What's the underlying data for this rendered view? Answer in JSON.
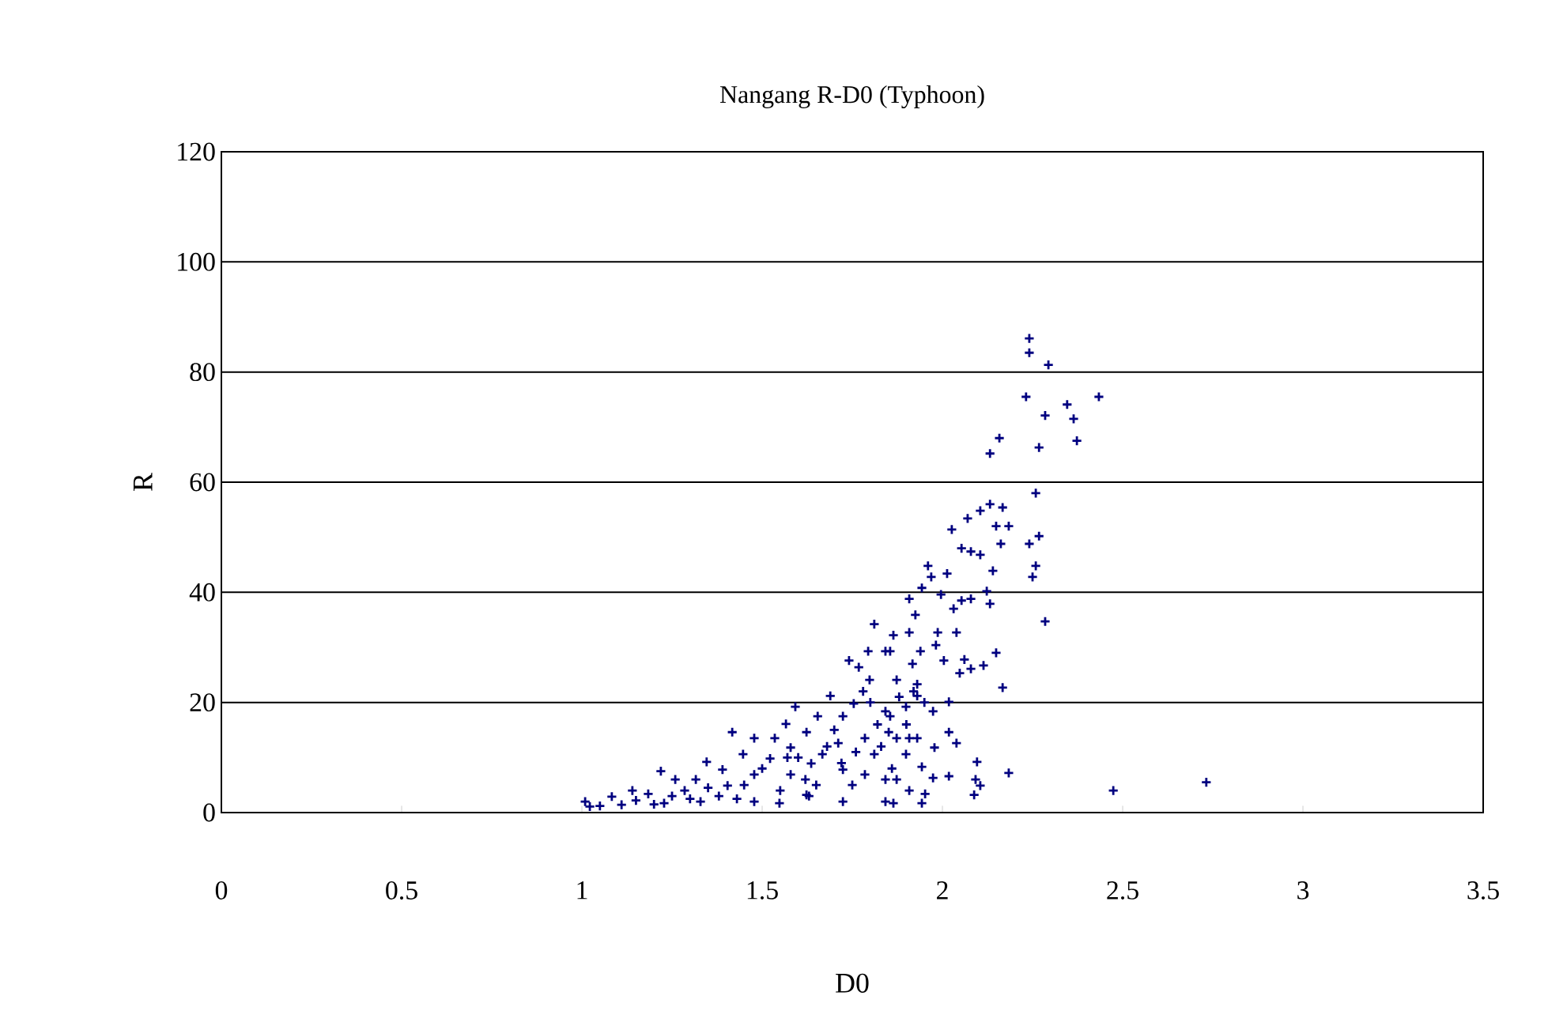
{
  "chart_data": {
    "type": "scatter",
    "title": "Nangang R-D0 (Typhoon)",
    "xlabel": "D0",
    "ylabel": "R",
    "xlim": [
      0,
      3.5
    ],
    "ylim": [
      0,
      120
    ],
    "xticks": [
      0,
      0.5,
      1,
      1.5,
      2,
      2.5,
      3,
      3.5
    ],
    "yticks": [
      0,
      20,
      40,
      60,
      80,
      100,
      120
    ],
    "grid": "y",
    "marker": "cross",
    "series": [
      {
        "color": "#000080",
        "x": [
          2.241,
          2.241,
          2.294,
          2.232,
          2.434,
          2.346,
          2.364,
          2.285,
          2.373,
          2.268,
          2.158,
          2.132,
          2.259,
          2.132,
          2.167,
          2.105,
          2.07,
          2.026,
          2.149,
          2.184,
          2.162,
          2.053,
          2.079,
          2.105,
          2.241,
          2.268,
          2.14,
          2.259,
          2.25,
          1.96,
          1.969,
          2.013,
          1.943,
          1.908,
          1.996,
          2.123,
          2.132,
          2.079,
          2.053,
          2.031,
          1.925,
          2.285,
          1.864,
          1.908,
          1.987,
          2.039,
          1.982,
          1.939,
          1.855,
          2.149,
          2.061,
          2.114,
          2.079,
          2.048,
          2.004,
          1.917,
          1.873,
          1.93,
          2.167,
          2.018,
          1.974,
          1.899,
          1.93,
          1.855,
          1.908,
          1.93,
          2.018,
          2.039,
          1.978,
          1.851,
          2.096,
          2.184,
          2.018,
          2.092,
          2.105,
          2.088,
          1.899,
          1.943,
          1.873,
          1.974,
          1.952,
          1.908,
          1.943,
          1.864,
          2.474,
          2.732,
          1.811,
          1.794,
          1.842,
          1.741,
          1.768,
          1.798,
          1.689,
          1.754,
          1.592,
          1.566,
          1.654,
          1.724,
          1.842,
          1.417,
          1.478,
          1.535,
          1.623,
          1.785,
          1.873,
          1.346,
          1.219,
          1.259,
          1.316,
          1.39,
          1.447,
          1.522,
          1.579,
          1.667,
          1.711,
          1.811,
          1.14,
          1.083,
          1.009,
          1.184,
          1.285,
          1.404,
          1.478,
          1.579,
          1.636,
          1.724,
          1.785,
          1.842,
          1.329,
          1.478,
          1.623,
          1.724,
          1.842,
          1.022,
          1.11,
          1.228,
          1.548,
          1.6,
          1.65,
          1.7,
          1.75,
          1.8,
          1.82,
          1.78,
          1.72,
          1.68,
          1.62,
          1.55,
          1.5,
          1.45,
          1.38,
          1.3,
          1.2,
          1.15,
          1.05,
          1.25,
          1.35,
          1.43,
          1.57,
          1.63,
          1.76,
          1.88,
          1.9,
          1.92,
          1.95,
          1.86,
          1.83
        ],
        "values": [
          86.1,
          83.5,
          81.3,
          75.5,
          75.5,
          74.1,
          71.5,
          72.1,
          67.5,
          66.3,
          68.0,
          65.2,
          58.0,
          56.0,
          55.4,
          54.8,
          53.4,
          51.4,
          52.0,
          52.0,
          48.8,
          48.0,
          47.4,
          46.8,
          48.8,
          50.2,
          43.9,
          44.8,
          42.8,
          44.8,
          42.8,
          43.4,
          40.8,
          38.8,
          39.6,
          40.2,
          37.9,
          38.8,
          38.5,
          37.0,
          35.9,
          34.7,
          32.2,
          32.7,
          32.7,
          32.7,
          30.4,
          29.3,
          29.3,
          29.0,
          27.8,
          26.7,
          26.1,
          25.3,
          27.6,
          27.0,
          24.1,
          23.3,
          22.7,
          20.1,
          18.4,
          19.2,
          21.2,
          17.5,
          13.5,
          13.5,
          14.6,
          12.6,
          11.8,
          14.6,
          9.2,
          7.2,
          6.6,
          6.0,
          4.9,
          3.2,
          10.6,
          8.3,
          6.0,
          6.3,
          3.4,
          4.0,
          1.7,
          1.7,
          4.0,
          5.5,
          34.2,
          29.3,
          29.3,
          27.6,
          26.4,
          24.1,
          21.2,
          19.8,
          19.2,
          16.1,
          17.5,
          17.5,
          18.4,
          14.6,
          13.5,
          13.5,
          14.6,
          13.5,
          13.5,
          9.2,
          7.5,
          6.0,
          6.0,
          7.8,
          10.6,
          9.8,
          11.8,
          10.6,
          12.6,
          10.6,
          4.0,
          2.9,
          2.0,
          3.4,
          4.0,
          4.9,
          6.9,
          6.9,
          8.9,
          7.8,
          6.9,
          6.0,
          2.0,
          2.0,
          3.2,
          2.0,
          2.0,
          1.1,
          1.4,
          1.7,
          1.7,
          10,
          5,
          15,
          5,
          20,
          16,
          22,
          9,
          12,
          6,
          4,
          8,
          5,
          3,
          2.5,
          1.5,
          2.2,
          1.2,
          3.0,
          4.5,
          2.5,
          10,
          3,
          11,
          21,
          16,
          22,
          20,
          8,
          12
        ]
      }
    ]
  }
}
